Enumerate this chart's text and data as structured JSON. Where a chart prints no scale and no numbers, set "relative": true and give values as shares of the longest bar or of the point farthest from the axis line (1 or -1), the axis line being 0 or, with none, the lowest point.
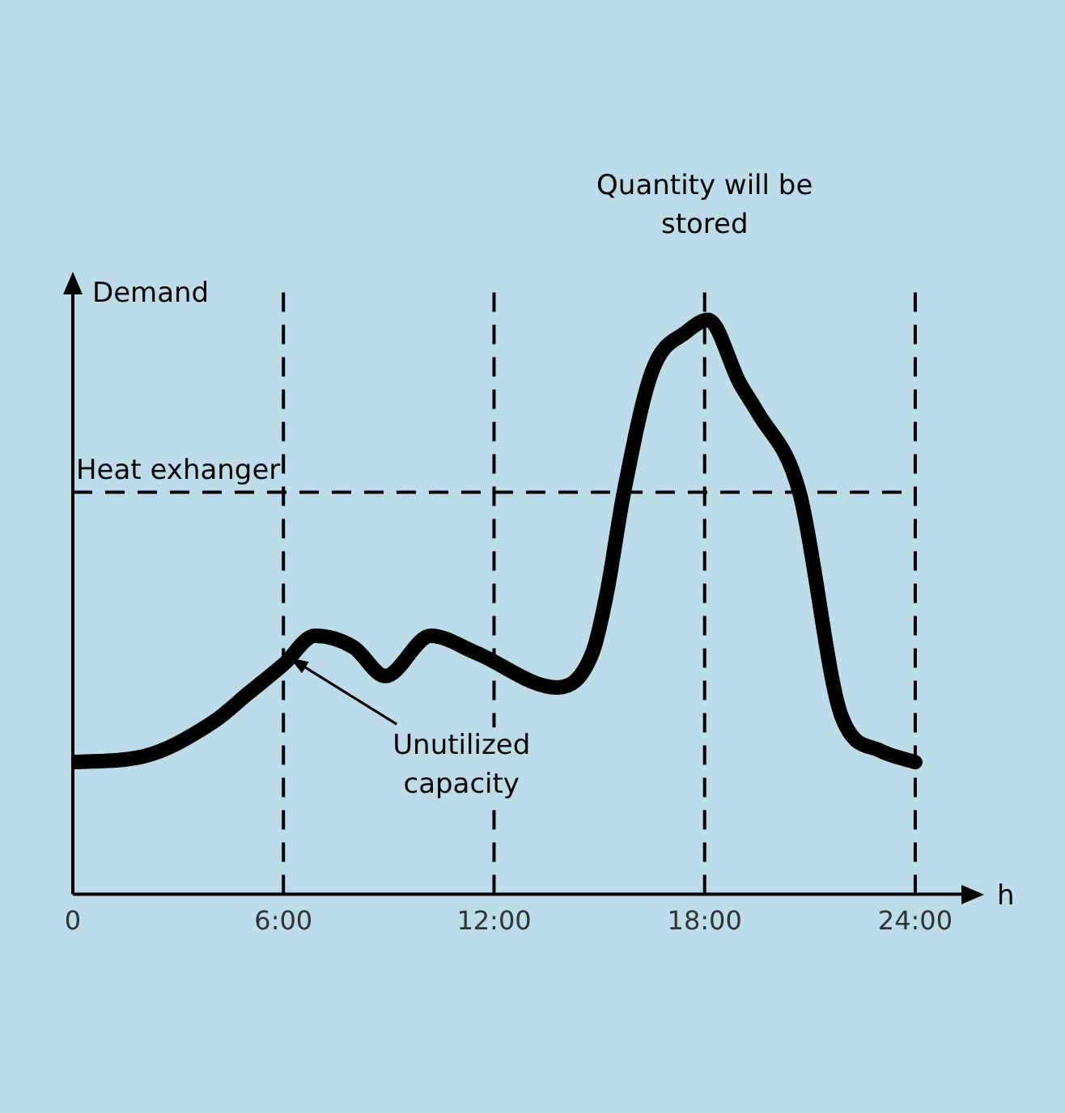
{
  "chart_data": {
    "type": "line",
    "relative": true,
    "ylabel": "Demand",
    "xlabel": "h",
    "xlim": [
      0,
      25.5
    ],
    "xticks": [
      0,
      {
        "value": 6,
        "label": "6:00"
      },
      {
        "value": 12,
        "label": "12:00"
      },
      {
        "value": 18,
        "label": "18:00"
      },
      {
        "value": 24,
        "label": "24:00"
      }
    ],
    "series": [
      {
        "color": "#000000",
        "x": [
          0,
          2,
          4,
          5,
          6,
          6.9,
          8,
          8.9,
          10.2,
          11.5,
          13.8,
          14.8,
          15.2,
          15.7,
          16.5,
          17.5,
          18.1,
          19,
          19.5,
          20.7,
          21.9,
          23,
          24
        ],
        "values": [
          0.23,
          0.24,
          0.3,
          0.35,
          0.4,
          0.45,
          0.43,
          0.38,
          0.45,
          0.42,
          0.36,
          0.42,
          0.52,
          0.7,
          0.91,
          0.98,
          1,
          0.89,
          0.84,
          0.7,
          0.31,
          0.25,
          0.23
        ]
      }
    ],
    "ref_lines": [
      {
        "axis": "y",
        "value": 0.7,
        "label": "Heat exhanger",
        "line_style": "dashed"
      },
      {
        "axis": "x",
        "value": 6,
        "line_style": "dashed"
      },
      {
        "axis": "x",
        "value": 12,
        "line_style": "dashed"
      },
      {
        "axis": "x",
        "value": 18,
        "line_style": "dashed"
      },
      {
        "axis": "x",
        "value": 24,
        "line_style": "dashed"
      }
    ],
    "annotations": [
      {
        "text": "Quantity will be stored",
        "x": 18,
        "y": 1
      },
      {
        "text": "Unutilized capacity",
        "x": 6,
        "y": 0.42
      }
    ],
    "grid": false,
    "legend": false,
    "marker": "none",
    "line_style": "solid"
  }
}
